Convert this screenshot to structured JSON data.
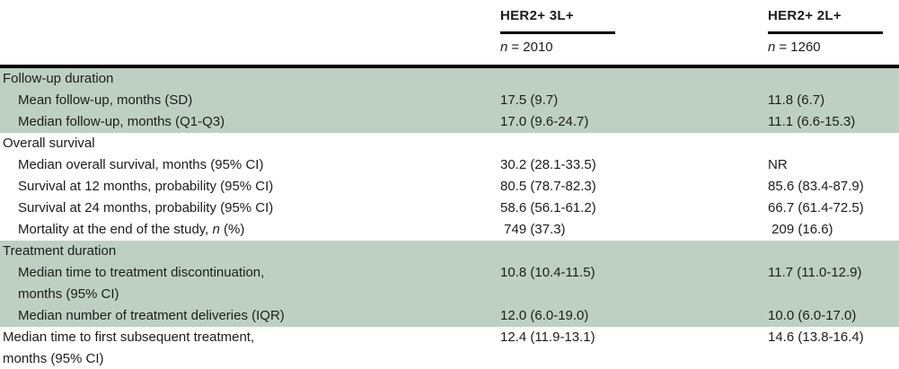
{
  "table": {
    "header": {
      "columns": [
        {
          "title": "HER2+ 3L+",
          "n_symbol": "n",
          "n_value": "= 2010"
        },
        {
          "title": "HER2+ 2L+",
          "n_symbol": "n",
          "n_value": "= 1260"
        }
      ]
    },
    "rows": [
      {
        "type": "section",
        "label": "Follow-up duration",
        "shaded": true
      },
      {
        "type": "data",
        "label": "Mean follow-up, months (SD)",
        "col1": "17.5 (9.7)",
        "col2": "11.8 (6.7)",
        "shaded": true
      },
      {
        "type": "data",
        "label": "Median follow-up, months (Q1-Q3)",
        "col1": "17.0 (9.6-24.7)",
        "col2": "11.1 (6.6-15.3)",
        "shaded": true
      },
      {
        "type": "section",
        "label": "Overall survival",
        "shaded": false
      },
      {
        "type": "data",
        "label": "Median overall survival, months (95% CI)",
        "col1": "30.2 (28.1-33.5)",
        "col2": "NR",
        "shaded": false
      },
      {
        "type": "data",
        "label": "Survival at 12 months, probability (95% CI)",
        "col1": "80.5 (78.7-82.3)",
        "col2": "85.6 (83.4-87.9)",
        "shaded": false
      },
      {
        "type": "data",
        "label": "Survival at 24 months, probability (95% CI)",
        "col1": "58.6 (56.1-61.2)",
        "col2": "66.7 (61.4-72.5)",
        "shaded": false
      },
      {
        "type": "data",
        "label_prefix": "Mortality at the end of the study, ",
        "label_italic": "n",
        "label_suffix": " (%)",
        "col1": " 749 (37.3)",
        "col2": " 209 (16.6)",
        "shaded": false
      },
      {
        "type": "section",
        "label": "Treatment duration",
        "shaded": true
      },
      {
        "type": "data",
        "label_line1": "Median time to treatment discontinuation,",
        "label_line2": "months (95% CI)",
        "col1": "10.8 (10.4-11.5)",
        "col2": "11.7 (11.0-12.9)",
        "shaded": true
      },
      {
        "type": "data",
        "label": "Median number of treatment deliveries (IQR)",
        "col1": "12.0 (6.0-19.0)",
        "col2": "10.0 (6.0-17.0)",
        "shaded": true
      },
      {
        "type": "data",
        "label_line1": "Median time to first subsequent treatment,",
        "label_line2": "months (95% CI)",
        "col1": "12.4 (11.9-13.1)",
        "col2": "14.6 (13.8-16.4)",
        "shaded": false
      }
    ],
    "colors": {
      "shaded_row_background": "#bed0c3",
      "rule": "#000000",
      "text": "#1c1c1c"
    }
  }
}
